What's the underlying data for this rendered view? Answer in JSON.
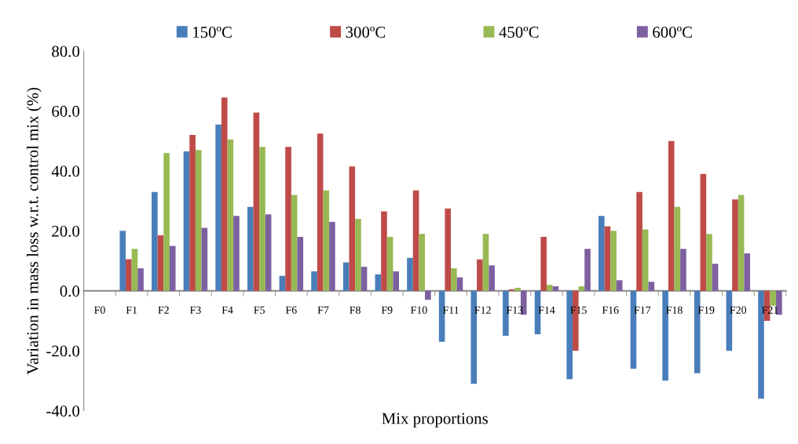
{
  "chart_data": {
    "type": "bar",
    "xlabel": "Mix proportions",
    "ylabel": "Variation in mass loss w.r.t. control mix (%)",
    "categories": [
      "F0",
      "F1",
      "F2",
      "F3",
      "F4",
      "F5",
      "F6",
      "F7",
      "F8",
      "F9",
      "F10",
      "F11",
      "F12",
      "F13",
      "F14",
      "F15",
      "F16",
      "F17",
      "F18",
      "F19",
      "F20",
      "F21"
    ],
    "series": [
      {
        "name": "150ºC",
        "color": "#4a7ebb",
        "values": [
          0,
          20,
          33,
          46.5,
          55.5,
          28,
          5,
          6.5,
          9.5,
          5.5,
          11,
          -17,
          -31,
          -15,
          -14.5,
          -29.5,
          25,
          -26,
          -30,
          -27.5,
          -20,
          -36
        ]
      },
      {
        "name": "300ºC",
        "color": "#be4b48",
        "values": [
          0,
          10.5,
          18.5,
          52,
          64.5,
          59.5,
          48,
          52.5,
          41.5,
          26.5,
          33.5,
          27.5,
          10.5,
          0.5,
          18,
          -20,
          21.5,
          33,
          50,
          39,
          30.5,
          -10
        ]
      },
      {
        "name": "450ºC",
        "color": "#98b954",
        "values": [
          0,
          14,
          46,
          47,
          50.5,
          48,
          32,
          33.5,
          24,
          18,
          19,
          7.5,
          19,
          1,
          2,
          1.5,
          20,
          20.5,
          28,
          19,
          32,
          -5
        ]
      },
      {
        "name": "600ºC",
        "color": "#7d60a0",
        "values": [
          0,
          7.5,
          15,
          21,
          25,
          25.5,
          18,
          23,
          8,
          6.5,
          -3,
          4.5,
          8.5,
          -8,
          1.5,
          14,
          3.5,
          3,
          14,
          9,
          12.5,
          -8
        ]
      }
    ],
    "ylim": [
      -40,
      80
    ],
    "yticks": [
      {
        "value": -40,
        "label": "-40.0"
      },
      {
        "value": -20,
        "label": "-20.0"
      },
      {
        "value": 0,
        "label": "0.0"
      },
      {
        "value": 20,
        "label": "20.0"
      },
      {
        "value": 40,
        "label": "40.0"
      },
      {
        "value": 60,
        "label": "60.0"
      },
      {
        "value": 80,
        "label": "80.0"
      }
    ],
    "grid": false,
    "legend": "top"
  }
}
